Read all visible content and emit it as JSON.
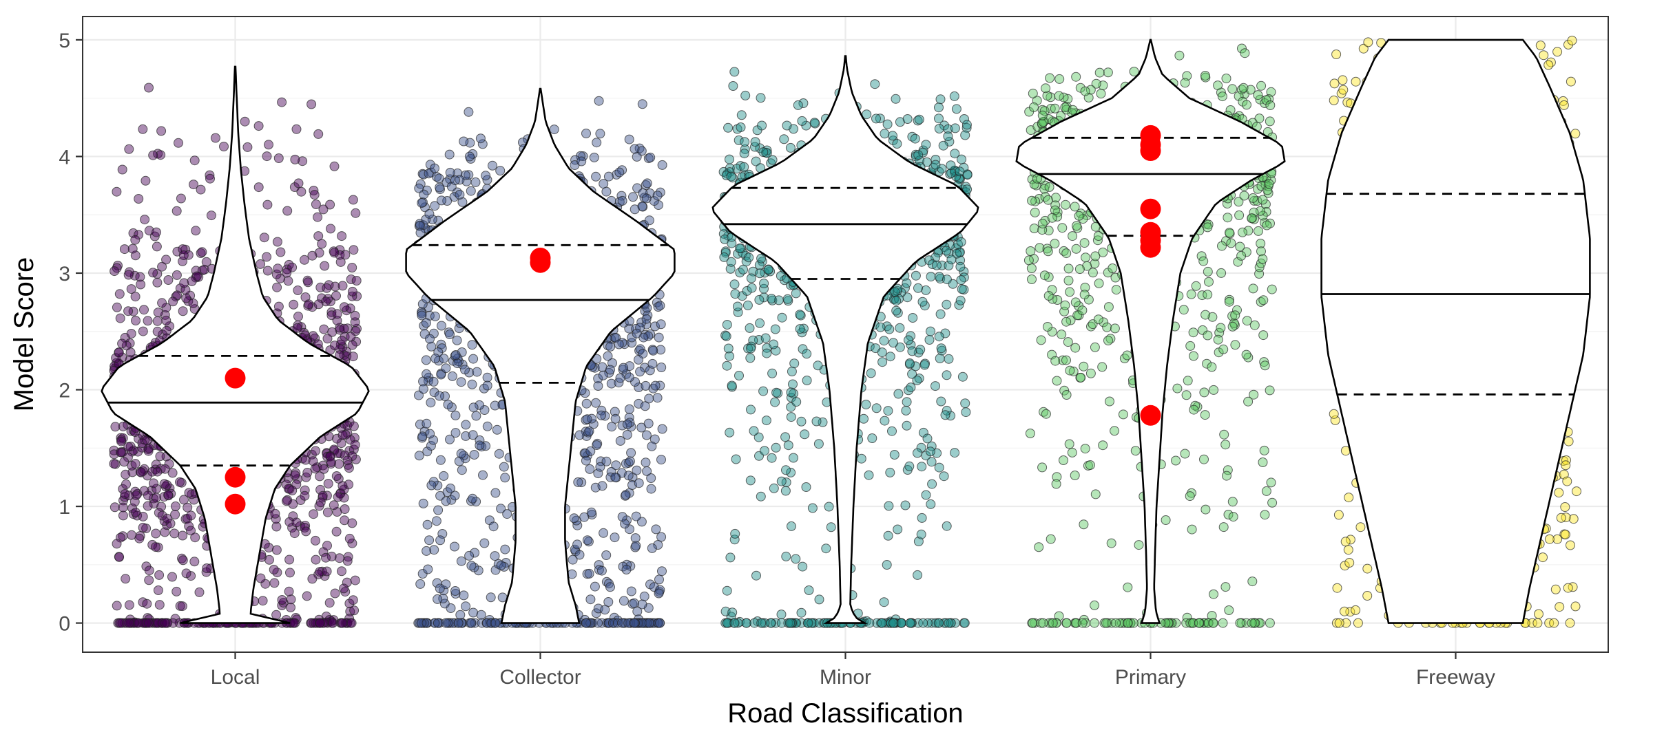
{
  "chart_data": {
    "type": "violin",
    "xlabel": "Road Classification",
    "ylabel": "Model Score",
    "ylim": [
      -0.25,
      5.2
    ],
    "yticks": [
      0,
      1,
      2,
      3,
      4,
      5
    ],
    "grid": true,
    "legend": "none",
    "categories": [
      "Local",
      "Collector",
      "Minor",
      "Primary",
      "Freeway"
    ],
    "groups": [
      {
        "name": "Local",
        "color": "#440154",
        "point_alpha": 0.45,
        "n_points": 1500,
        "zero_points": 120,
        "quartiles": [
          1.35,
          1.89,
          2.29
        ],
        "highlight_points": [
          2.1,
          1.25,
          1.02
        ],
        "density": [
          [
            0,
            0.18
          ],
          [
            0.08,
            0.05
          ],
          [
            0.3,
            0.06
          ],
          [
            0.6,
            0.08
          ],
          [
            0.9,
            0.1
          ],
          [
            1.15,
            0.13
          ],
          [
            1.35,
            0.18
          ],
          [
            1.6,
            0.28
          ],
          [
            1.8,
            0.4
          ],
          [
            2.0,
            0.44
          ],
          [
            2.2,
            0.38
          ],
          [
            2.4,
            0.24
          ],
          [
            2.6,
            0.14
          ],
          [
            2.8,
            0.09
          ],
          [
            3.0,
            0.07
          ],
          [
            3.3,
            0.045
          ],
          [
            3.6,
            0.03
          ],
          [
            3.9,
            0.018
          ],
          [
            4.2,
            0.01
          ],
          [
            4.5,
            0.005
          ],
          [
            4.77,
            0.001
          ]
        ]
      },
      {
        "name": "Collector",
        "color": "#3b528b",
        "point_alpha": 0.45,
        "n_points": 1300,
        "zero_points": 120,
        "quartiles": [
          2.06,
          2.77,
          3.24
        ],
        "highlight_points": [
          3.13,
          3.09
        ],
        "density": [
          [
            0,
            0.11
          ],
          [
            0.15,
            0.1
          ],
          [
            0.35,
            0.08
          ],
          [
            0.7,
            0.07
          ],
          [
            1.0,
            0.07
          ],
          [
            1.3,
            0.08
          ],
          [
            1.6,
            0.09
          ],
          [
            1.9,
            0.1
          ],
          [
            2.2,
            0.13
          ],
          [
            2.5,
            0.2
          ],
          [
            2.8,
            0.32
          ],
          [
            3.0,
            0.38
          ],
          [
            3.2,
            0.38
          ],
          [
            3.45,
            0.27
          ],
          [
            3.7,
            0.15
          ],
          [
            3.9,
            0.08
          ],
          [
            4.1,
            0.04
          ],
          [
            4.3,
            0.015
          ],
          [
            4.5,
            0.005
          ],
          [
            4.58,
            0.001
          ]
        ]
      },
      {
        "name": "Minor",
        "color": "#21908c",
        "point_alpha": 0.45,
        "n_points": 1100,
        "zero_points": 90,
        "quartiles": [
          2.95,
          3.42,
          3.73
        ],
        "highlight_points": [],
        "density": [
          [
            0,
            0.06
          ],
          [
            0.05,
            0.03
          ],
          [
            0.15,
            0.015
          ],
          [
            0.5,
            0.018
          ],
          [
            1.0,
            0.025
          ],
          [
            1.5,
            0.035
          ],
          [
            2.0,
            0.05
          ],
          [
            2.4,
            0.07
          ],
          [
            2.8,
            0.12
          ],
          [
            3.1,
            0.22
          ],
          [
            3.35,
            0.36
          ],
          [
            3.55,
            0.42
          ],
          [
            3.75,
            0.35
          ],
          [
            3.95,
            0.2
          ],
          [
            4.15,
            0.1
          ],
          [
            4.35,
            0.05
          ],
          [
            4.55,
            0.02
          ],
          [
            4.75,
            0.005
          ],
          [
            4.86,
            0.001
          ]
        ]
      },
      {
        "name": "Primary",
        "color": "#5dc863",
        "point_alpha": 0.45,
        "n_points": 900,
        "zero_points": 70,
        "quartiles": [
          3.32,
          3.85,
          4.16
        ],
        "highlight_points": [
          4.18,
          4.1,
          4.05,
          3.55,
          3.35,
          3.28,
          3.22,
          1.78
        ],
        "density": [
          [
            0,
            0.03
          ],
          [
            0.1,
            0.018
          ],
          [
            0.3,
            0.012
          ],
          [
            0.6,
            0.015
          ],
          [
            1.0,
            0.02
          ],
          [
            1.4,
            0.03
          ],
          [
            1.8,
            0.04
          ],
          [
            2.2,
            0.055
          ],
          [
            2.6,
            0.075
          ],
          [
            3.0,
            0.1
          ],
          [
            3.3,
            0.14
          ],
          [
            3.6,
            0.22
          ],
          [
            3.8,
            0.34
          ],
          [
            3.95,
            0.45
          ],
          [
            4.1,
            0.44
          ],
          [
            4.3,
            0.3
          ],
          [
            4.5,
            0.13
          ],
          [
            4.7,
            0.04
          ],
          [
            4.85,
            0.015
          ],
          [
            5.0,
            0.001
          ]
        ]
      },
      {
        "name": "Freeway",
        "color": "#fde725",
        "point_alpha": 0.45,
        "n_points": 700,
        "zero_points": 30,
        "quartiles": [
          1.96,
          2.82,
          3.68
        ],
        "highlight_points": [],
        "density": [
          [
            0,
            0.2
          ],
          [
            0.3,
            0.22
          ],
          [
            0.8,
            0.26
          ],
          [
            1.3,
            0.3
          ],
          [
            1.8,
            0.34
          ],
          [
            2.3,
            0.38
          ],
          [
            2.8,
            0.4
          ],
          [
            3.3,
            0.4
          ],
          [
            3.8,
            0.38
          ],
          [
            4.2,
            0.34
          ],
          [
            4.6,
            0.28
          ],
          [
            4.85,
            0.24
          ],
          [
            5.0,
            0.2
          ]
        ]
      }
    ]
  }
}
